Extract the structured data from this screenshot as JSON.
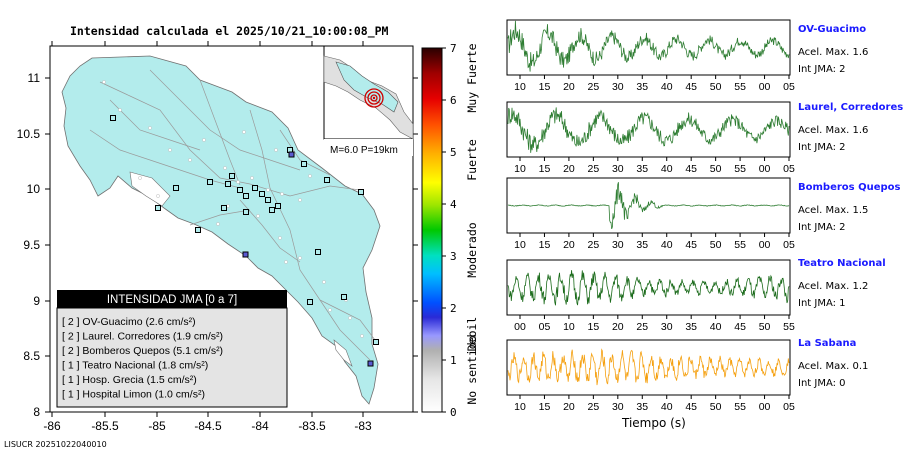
{
  "map": {
    "title": "Intensidad calculada el 2025/10/21_10:00:08_PM",
    "footer_id": "LISUCR 20251022040010",
    "lon_ticks": [
      "-86",
      "-85.5",
      "-85",
      "-84.5",
      "-84",
      "-83.5",
      "-83"
    ],
    "lat_ticks": [
      "8",
      "8.5",
      "9",
      "9.5",
      "10",
      "10.5",
      "11"
    ],
    "inset_label": "M=6.0 P=19km",
    "legend": {
      "title": "INTENSIDAD JMA [0 a 7]",
      "rows": [
        "[ 2 ]  OV-Guacimo (2.6 cm/s²)",
        "[ 2 ]  Laurel. Corredores (1.9 cm/s²)",
        "[ 2 ]  Bomberos Quepos (5.1 cm/s²)",
        "[ 1 ]  Teatro Nacional (1.8 cm/s²)",
        "[ 1 ]  Hosp. Grecia (1.5 cm/s²)",
        "[ 1 ]  Hospital Limon (1.0 cm/s²)"
      ]
    }
  },
  "colorbar": {
    "ticks": [
      "0",
      "1",
      "2",
      "3",
      "4",
      "5",
      "6",
      "7"
    ],
    "class_labels": [
      "No sentido",
      "Debil",
      "Moderado",
      "Fuerte",
      "Muy Fuerte"
    ]
  },
  "seismograms": {
    "xlabel": "Tiempo (s)",
    "stations": [
      {
        "name": "OV-Guacimo",
        "acc": "Acel. Max. 1.6",
        "int": "Int JMA: 2",
        "color": "#2e7d32",
        "ticks": [
          "10",
          "15",
          "20",
          "25",
          "30",
          "35",
          "40",
          "45",
          "50",
          "55",
          "00",
          "05"
        ]
      },
      {
        "name": "Laurel, Corredores",
        "acc": "Acel. Max. 1.6",
        "int": "Int JMA: 2",
        "color": "#2e7d32",
        "ticks": [
          "10",
          "15",
          "20",
          "25",
          "30",
          "35",
          "40",
          "45",
          "50",
          "55",
          "00",
          "05"
        ]
      },
      {
        "name": "Bomberos Quepos",
        "acc": "Acel. Max. 1.5",
        "int": "Int JMA: 2",
        "color": "#2e7d32",
        "ticks": [
          "10",
          "15",
          "20",
          "25",
          "30",
          "35",
          "40",
          "45",
          "50",
          "55",
          "00",
          "05"
        ]
      },
      {
        "name": "Teatro Nacional",
        "acc": "Acel. Max. 1.2",
        "int": "Int JMA: 1",
        "color": "#1b6b1b",
        "ticks": [
          "00",
          "05",
          "10",
          "15",
          "20",
          "25",
          "30",
          "35",
          "40",
          "45",
          "50",
          "55"
        ]
      },
      {
        "name": "La Sabana",
        "acc": "Acel. Max. 0.1",
        "int": "Int JMA: 0",
        "color": "#f5a00f",
        "ticks": [
          "10",
          "15",
          "20",
          "25",
          "30",
          "35",
          "40",
          "45",
          "50",
          "55",
          "00",
          "05"
        ]
      }
    ]
  },
  "chart_data": [
    {
      "type": "scatter",
      "title": "Intensidad calculada el 2025/10/21_10:00:08_PM",
      "xlim": [
        -86,
        -82.6
      ],
      "ylim": [
        8,
        11.3
      ],
      "colorbar_range": [
        0,
        7
      ],
      "colorbar_classes": [
        "No sentido",
        "Debil",
        "Moderado",
        "Fuerte",
        "Muy Fuerte"
      ],
      "stations": [
        {
          "name": "OV-Guacimo",
          "int": 2,
          "acc": 2.6
        },
        {
          "name": "Laurel. Corredores",
          "int": 2,
          "acc": 1.9
        },
        {
          "name": "Bomberos Quepos",
          "int": 2,
          "acc": 5.1
        },
        {
          "name": "Teatro Nacional",
          "int": 1,
          "acc": 1.8
        },
        {
          "name": "Hosp. Grecia",
          "int": 1,
          "acc": 1.5
        },
        {
          "name": "Hospital Limon",
          "int": 1,
          "acc": 1.0
        }
      ],
      "inset": {
        "magnitude": 6.0,
        "depth_km": 19
      }
    },
    {
      "type": "line",
      "xlabel": "Tiempo (s)",
      "series": [
        {
          "name": "OV-Guacimo",
          "max_acc": 1.6,
          "int_jma": 2
        },
        {
          "name": "Laurel, Corredores",
          "max_acc": 1.6,
          "int_jma": 2
        },
        {
          "name": "Bomberos Quepos",
          "max_acc": 1.5,
          "int_jma": 2
        },
        {
          "name": "Teatro Nacional",
          "max_acc": 1.2,
          "int_jma": 1
        },
        {
          "name": "La Sabana",
          "max_acc": 0.1,
          "int_jma": 0
        }
      ]
    }
  ]
}
